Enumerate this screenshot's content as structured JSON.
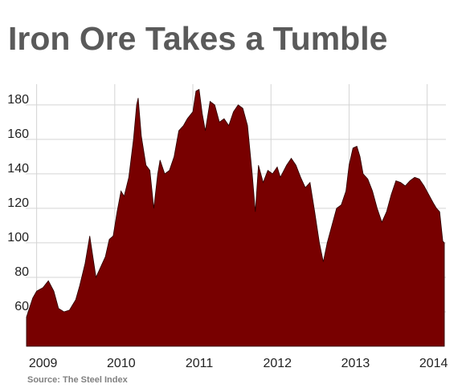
{
  "chart_data": {
    "type": "area",
    "title": "Iron Ore Takes a Tumble",
    "source": "Source: The Steel Index",
    "color": "#780000",
    "grid": true,
    "xlim": [
      2008.86,
      2014.24
    ],
    "xticks": [
      2009,
      2010,
      2011,
      2012,
      2013,
      2014
    ],
    "ylim": [
      40,
      192
    ],
    "yticks": [
      60,
      80,
      100,
      120,
      140,
      160,
      180
    ],
    "x": [
      2008.87,
      2008.95,
      2009.0,
      2009.08,
      2009.15,
      2009.22,
      2009.28,
      2009.35,
      2009.42,
      2009.5,
      2009.55,
      2009.62,
      2009.68,
      2009.72,
      2009.76,
      2009.82,
      2009.88,
      2009.93,
      2009.98,
      2010.03,
      2010.08,
      2010.12,
      2010.18,
      2010.24,
      2010.28,
      2010.3,
      2010.34,
      2010.4,
      2010.45,
      2010.5,
      2010.55,
      2010.58,
      2010.64,
      2010.7,
      2010.76,
      2010.82,
      2010.88,
      2010.93,
      2011.0,
      2011.04,
      2011.08,
      2011.12,
      2011.16,
      2011.22,
      2011.28,
      2011.34,
      2011.4,
      2011.46,
      2011.52,
      2011.58,
      2011.64,
      2011.7,
      2011.76,
      2011.8,
      2011.84,
      2011.9,
      2011.96,
      2012.02,
      2012.08,
      2012.12,
      2012.2,
      2012.26,
      2012.32,
      2012.38,
      2012.44,
      2012.5,
      2012.56,
      2012.62,
      2012.67,
      2012.72,
      2012.78,
      2012.84,
      2012.9,
      2012.96,
      2013.0,
      2013.05,
      2013.1,
      2013.14,
      2013.18,
      2013.24,
      2013.3,
      2013.36,
      2013.42,
      2013.48,
      2013.54,
      2013.6,
      2013.66,
      2013.72,
      2013.78,
      2013.84,
      2013.9,
      2013.96,
      2014.02,
      2014.08,
      2014.12,
      2014.16,
      2014.2,
      2014.22
    ],
    "values": [
      57,
      68,
      72,
      74,
      78,
      72,
      62,
      60,
      61,
      67,
      75,
      88,
      104,
      92,
      80,
      86,
      92,
      102,
      104,
      118,
      130,
      127,
      138,
      160,
      180,
      184,
      162,
      145,
      142,
      120,
      140,
      148,
      140,
      142,
      150,
      165,
      168,
      172,
      176,
      188,
      189,
      175,
      165,
      182,
      180,
      170,
      172,
      168,
      176,
      180,
      178,
      168,
      140,
      118,
      145,
      135,
      142,
      140,
      144,
      138,
      145,
      149,
      145,
      138,
      132,
      135,
      118,
      100,
      89,
      100,
      110,
      120,
      122,
      130,
      145,
      155,
      156,
      150,
      140,
      137,
      130,
      120,
      112,
      118,
      128,
      136,
      135,
      133,
      136,
      138,
      137,
      133,
      128,
      123,
      120,
      118,
      101,
      100
    ]
  }
}
